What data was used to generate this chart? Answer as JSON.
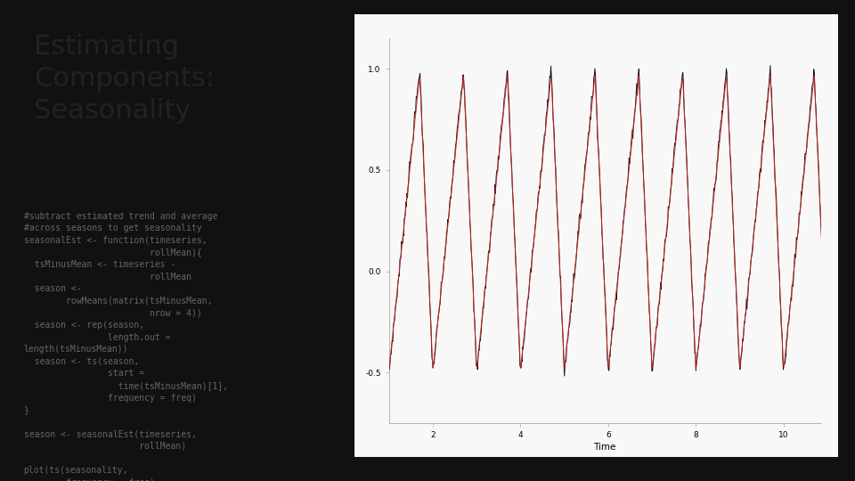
{
  "title": "Estimating\nComponents:\nSeasonality",
  "title_fontsize": 22,
  "title_color": "#222222",
  "code_text": "#subtract estimated trend and average\n#across seasons to get seasonality\nseasonalEst <- function(timeseries,\n                        rollMean){\n  tsMinusMean <- timeseries -\n                        rollMean\n  season <-\n        rowMeans(matrix(tsMinusMean,\n                        nrow = 4))\n  season <- rep(season,\n                length.out =\nlength(tsMinusMean))\n  season <- ts(season,\n                start =\n                  time(tsMinusMean)[1],\n                frequency = freq)\n}\n\nseason <- seasonalEst(timeseries,\n                      rollMean)\n\nplot(ts(seasonality,\n        frequency = freq),\n     type = \"l\")\nlines(season, col = \"red\")",
  "code_fontsize": 7.0,
  "code_color": "#666666",
  "left_bg": "#ffffff",
  "right_bg": "#111111",
  "panel_background": "#f8f8f8",
  "panel_border_color": "#aaccdd",
  "freq": 4,
  "n_years": 10,
  "ylim": [
    -0.75,
    1.15
  ],
  "yticks": [
    -0.5,
    0.0,
    0.5,
    1.0
  ],
  "xticks": [
    2,
    4,
    6,
    8,
    10
  ],
  "xlabel": "Time",
  "line_color_black": "#111111",
  "line_color_red": "#cc2222",
  "line_width": 0.7,
  "arrow_color": "#111111"
}
